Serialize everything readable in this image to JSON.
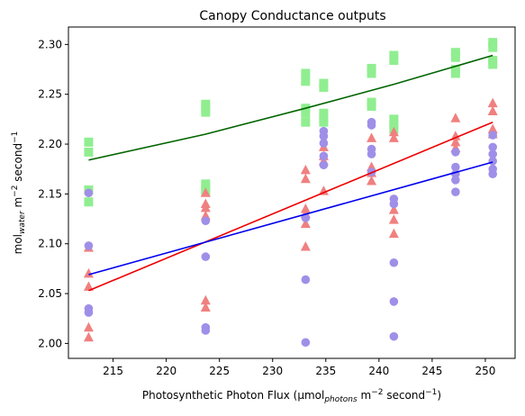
{
  "chart_data": {
    "type": "scatter",
    "title": "Canopy Conductance outputs",
    "xlabel": {
      "pre": "Photosynthetic Photon Flux (μmol",
      "sub": "photons",
      "mid": " m",
      "sup1": "−2",
      "mid2": " second",
      "sup2": "−1",
      "post": ")"
    },
    "ylabel": {
      "pre": "mol",
      "sub": "water",
      "mid": " m",
      "sup1": "−2",
      "mid2": " second",
      "sup2": "−1"
    },
    "xlim": [
      210.8,
      252.8
    ],
    "ylim": [
      1.985,
      2.3175
    ],
    "xticks": [
      215,
      220,
      225,
      230,
      235,
      240,
      245,
      250
    ],
    "yticks": [
      2.0,
      2.05,
      2.1,
      2.15,
      2.2,
      2.25,
      2.3
    ],
    "ytick_labels": [
      "2.00",
      "2.05",
      "2.10",
      "2.15",
      "2.20",
      "2.25",
      "2.30"
    ],
    "grid": false,
    "series": [
      {
        "marker": "square",
        "color": "#90ee90",
        "points": [
          [
            212.7,
            2.202
          ],
          [
            212.7,
            2.192
          ],
          [
            212.7,
            2.154
          ],
          [
            212.7,
            2.142
          ],
          [
            223.7,
            2.24
          ],
          [
            223.7,
            2.236
          ],
          [
            223.7,
            2.232
          ],
          [
            223.7,
            2.16
          ],
          [
            223.7,
            2.156
          ],
          [
            223.7,
            2.152
          ],
          [
            233.1,
            2.271
          ],
          [
            233.1,
            2.263
          ],
          [
            233.1,
            2.236
          ],
          [
            233.1,
            2.231
          ],
          [
            233.1,
            2.222
          ],
          [
            234.8,
            2.261
          ],
          [
            234.8,
            2.257
          ],
          [
            234.8,
            2.231
          ],
          [
            234.8,
            2.226
          ],
          [
            234.8,
            2.222
          ],
          [
            239.3,
            2.276
          ],
          [
            239.3,
            2.271
          ],
          [
            239.3,
            2.242
          ],
          [
            239.3,
            2.238
          ],
          [
            241.4,
            2.289
          ],
          [
            241.4,
            2.284
          ],
          [
            241.4,
            2.225
          ],
          [
            241.4,
            2.22
          ],
          [
            241.4,
            2.215
          ],
          [
            247.2,
            2.292
          ],
          [
            247.2,
            2.287
          ],
          [
            247.2,
            2.275
          ],
          [
            247.2,
            2.271
          ],
          [
            250.7,
            2.302
          ],
          [
            250.7,
            2.297
          ],
          [
            250.7,
            2.284
          ],
          [
            250.7,
            2.28
          ]
        ]
      },
      {
        "marker": "triangle",
        "color": "#f08080",
        "points": [
          [
            212.7,
            2.096
          ],
          [
            212.7,
            2.07
          ],
          [
            212.7,
            2.057
          ],
          [
            212.7,
            2.016
          ],
          [
            212.7,
            2.006
          ],
          [
            223.7,
            2.151
          ],
          [
            223.7,
            2.14
          ],
          [
            223.7,
            2.136
          ],
          [
            223.7,
            2.128
          ],
          [
            223.7,
            2.043
          ],
          [
            223.7,
            2.036
          ],
          [
            233.1,
            2.174
          ],
          [
            233.1,
            2.165
          ],
          [
            233.1,
            2.135
          ],
          [
            233.1,
            2.13
          ],
          [
            233.1,
            2.12
          ],
          [
            233.1,
            2.097
          ],
          [
            234.8,
            2.197
          ],
          [
            234.8,
            2.188
          ],
          [
            234.8,
            2.183
          ],
          [
            234.8,
            2.153
          ],
          [
            239.3,
            2.206
          ],
          [
            239.3,
            2.177
          ],
          [
            239.3,
            2.171
          ],
          [
            239.3,
            2.163
          ],
          [
            241.4,
            2.212
          ],
          [
            241.4,
            2.206
          ],
          [
            241.4,
            2.134
          ],
          [
            241.4,
            2.124
          ],
          [
            241.4,
            2.11
          ],
          [
            247.2,
            2.226
          ],
          [
            247.2,
            2.208
          ],
          [
            247.2,
            2.202
          ],
          [
            247.2,
            2.196
          ],
          [
            250.7,
            2.241
          ],
          [
            250.7,
            2.233
          ],
          [
            250.7,
            2.215
          ],
          [
            250.7,
            2.21
          ]
        ]
      },
      {
        "marker": "circle",
        "color": "#9f8fe8",
        "points": [
          [
            212.7,
            2.151
          ],
          [
            212.7,
            2.098
          ],
          [
            212.7,
            2.035
          ],
          [
            212.7,
            2.031
          ],
          [
            223.7,
            2.123
          ],
          [
            223.7,
            2.087
          ],
          [
            223.7,
            2.016
          ],
          [
            223.7,
            2.013
          ],
          [
            233.1,
            2.126
          ],
          [
            233.1,
            2.064
          ],
          [
            233.1,
            2.001
          ],
          [
            234.8,
            2.213
          ],
          [
            234.8,
            2.208
          ],
          [
            234.8,
            2.201
          ],
          [
            234.8,
            2.188
          ],
          [
            234.8,
            2.179
          ],
          [
            239.3,
            2.222
          ],
          [
            239.3,
            2.219
          ],
          [
            239.3,
            2.195
          ],
          [
            239.3,
            2.19
          ],
          [
            239.3,
            2.172
          ],
          [
            241.4,
            2.145
          ],
          [
            241.4,
            2.14
          ],
          [
            241.4,
            2.081
          ],
          [
            241.4,
            2.042
          ],
          [
            241.4,
            2.007
          ],
          [
            247.2,
            2.177
          ],
          [
            247.2,
            2.17
          ],
          [
            247.2,
            2.164
          ],
          [
            247.2,
            2.152
          ],
          [
            247.2,
            2.192
          ],
          [
            250.7,
            2.209
          ],
          [
            250.7,
            2.197
          ],
          [
            250.7,
            2.19
          ],
          [
            250.7,
            2.183
          ],
          [
            250.7,
            2.175
          ],
          [
            250.7,
            2.17
          ]
        ]
      }
    ],
    "lines": [
      {
        "color": "#006400",
        "x": [
          212.7,
          223.7,
          233.1,
          241.4,
          250.7
        ],
        "y": [
          2.184,
          2.21,
          2.236,
          2.26,
          2.289
        ]
      },
      {
        "color": "#ee0000",
        "x": [
          212.7,
          250.7
        ],
        "y": [
          2.053,
          2.222
        ]
      },
      {
        "color": "#0000ee",
        "x": [
          212.7,
          250.7
        ],
        "y": [
          2.069,
          2.182
        ]
      }
    ]
  }
}
